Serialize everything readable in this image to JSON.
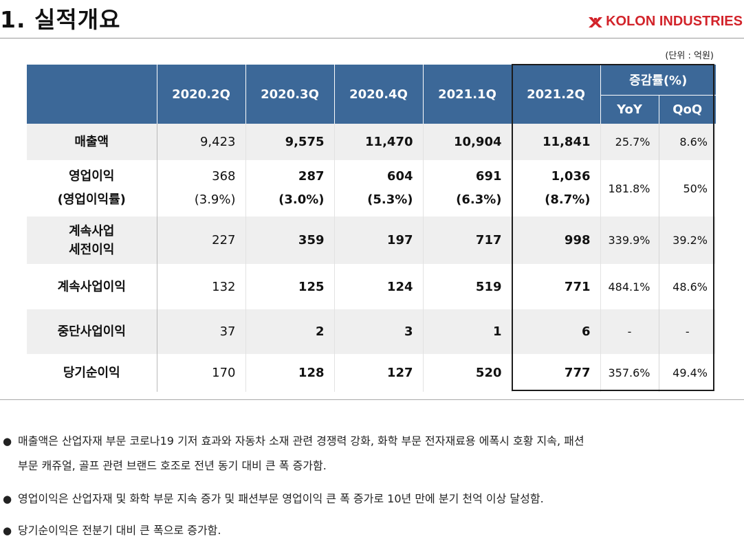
{
  "page": {
    "title": "1. 실적개요",
    "logo_text": "KOLON INDUSTRIES",
    "unit": "(단위 : 억원)"
  },
  "colors": {
    "header_bg": "#3c6898",
    "logo_red": "#d2232a",
    "shade_row": "#efefef"
  },
  "table": {
    "quarters": [
      "2020.2Q",
      "2020.3Q",
      "2020.4Q",
      "2021.1Q",
      "2021.2Q"
    ],
    "growth_header": "증감률(%)",
    "growth_cols": [
      "YoY",
      "QoQ"
    ],
    "rows": [
      {
        "label": "매출액",
        "values": [
          "9,423",
          "9,575",
          "11,470",
          "10,904",
          "11,841"
        ],
        "yoy": "25.7%",
        "qoq": "8.6%"
      },
      {
        "label": "영업이익",
        "label2": "(영업이익률)",
        "values": [
          "368",
          "287",
          "604",
          "691",
          "1,036"
        ],
        "values2": [
          "(3.9%)",
          "(3.0%)",
          "(5.3%)",
          "(6.3%)",
          "(8.7%)"
        ],
        "yoy": "181.8%",
        "qoq": "50%"
      },
      {
        "label": "계속사업",
        "label2": "세전이익",
        "values": [
          "227",
          "359",
          "197",
          "717",
          "998"
        ],
        "yoy": "339.9%",
        "qoq": "39.2%"
      },
      {
        "label": "계속사업이익",
        "values": [
          "132",
          "125",
          "124",
          "519",
          "771"
        ],
        "yoy": "484.1%",
        "qoq": "48.6%"
      },
      {
        "label": "중단사업이익",
        "values": [
          "37",
          "2",
          "3",
          "1",
          "6"
        ],
        "yoy": "-",
        "qoq": "-"
      },
      {
        "label": "당기순이익",
        "values": [
          "170",
          "128",
          "127",
          "520",
          "777"
        ],
        "yoy": "357.6%",
        "qoq": "49.4%"
      }
    ]
  },
  "notes": [
    {
      "bullet": "●",
      "line1": "매출액은 산업자재 부문 코로나19 기저 효과와 자동차 소재 관련 경쟁력 강화, 화학 부문 전자재료용 에폭시 호황 지속, 패션",
      "line2": "부문 캐쥬얼, 골프 관련 브랜드 호조로 전년 동기 대비 큰 폭 증가함."
    },
    {
      "bullet": "●",
      "line1": "영업이익은 산업자재 및 화학  부문 지속 증가 및 패션부문 영업이익 큰 폭 증가로 10년 만에 분기 천억 이상 달성함."
    },
    {
      "bullet": "●",
      "line1": "당기순이익은 전분기 대비 큰 폭으로 증가함."
    }
  ]
}
